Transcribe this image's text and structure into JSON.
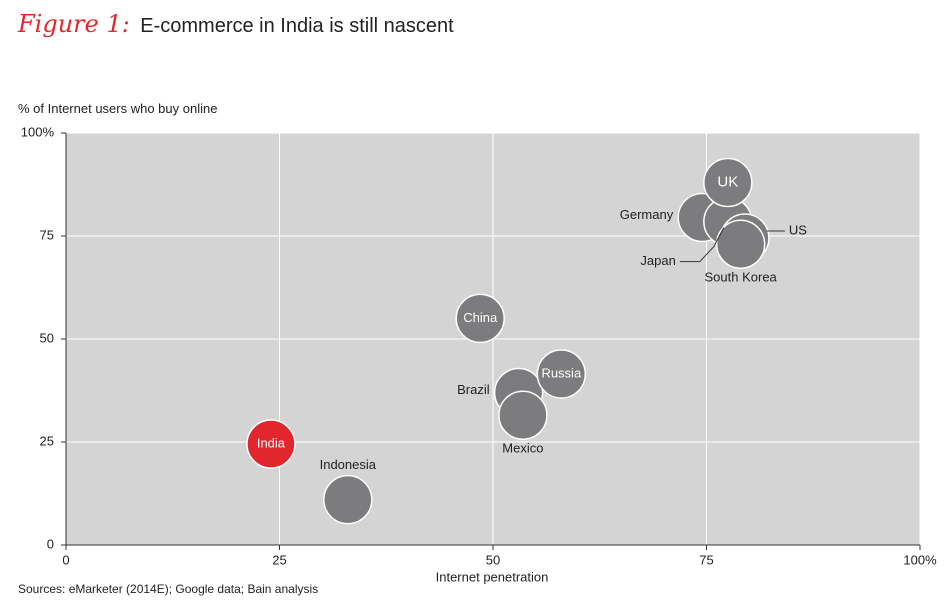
{
  "figure": {
    "label": "Figure 1:",
    "title": "E-commerce in India is still nascent"
  },
  "source": "Sources: eMarketer (2014E); Google data; Bain analysis",
  "colors": {
    "plot_bg": "#d4d4d4",
    "gridline": "#ffffff",
    "bubble": "#7c7b7d",
    "highlight": "#e1262d",
    "bubble_stroke": "#ffffff"
  },
  "chart_data": {
    "type": "scatter",
    "title": "E-commerce in India is still nascent",
    "xlabel": "Internet penetration",
    "ylabel": "% of Internet users who buy online",
    "xlim": [
      0,
      100
    ],
    "ylim": [
      0,
      100
    ],
    "grid": true,
    "x_ticks": [
      "0",
      "25",
      "50",
      "75",
      "100%"
    ],
    "y_ticks": [
      "0",
      "25",
      "50",
      "75",
      "100%"
    ],
    "points": [
      {
        "name": "India",
        "x": 24,
        "y": 24.5,
        "highlight": true,
        "label_position": "inside"
      },
      {
        "name": "Indonesia",
        "x": 33,
        "y": 11,
        "label_position": "above"
      },
      {
        "name": "China",
        "x": 48.5,
        "y": 55,
        "label_position": "inside"
      },
      {
        "name": "Brazil",
        "x": 53,
        "y": 37,
        "label_position": "left"
      },
      {
        "name": "Mexico",
        "x": 53.5,
        "y": 31.5,
        "label_position": "below"
      },
      {
        "name": "Russia",
        "x": 58,
        "y": 41.5,
        "label_position": "inside"
      },
      {
        "name": "Germany",
        "x": 74.5,
        "y": 79.5,
        "label_position": "left"
      },
      {
        "name": "Japan",
        "x": 77.5,
        "y": 78.5,
        "label_position": "callout-left"
      },
      {
        "name": "UK",
        "x": 77.5,
        "y": 88,
        "label_position": "inside"
      },
      {
        "name": "US",
        "x": 79.5,
        "y": 74.5,
        "label_position": "callout-right"
      },
      {
        "name": "South Korea",
        "x": 79,
        "y": 73,
        "label_position": "below"
      }
    ]
  }
}
